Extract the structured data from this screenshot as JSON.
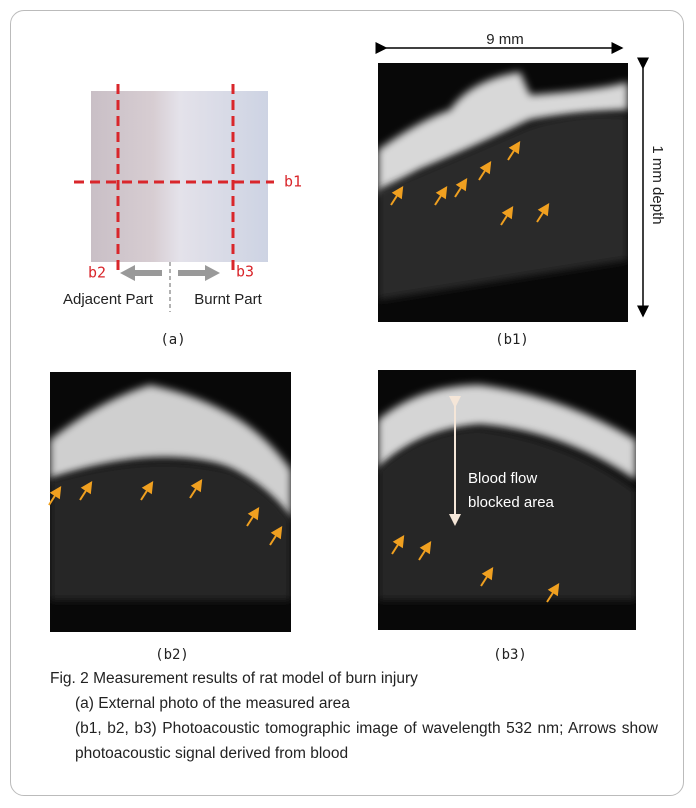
{
  "panel_a": {
    "b1_label": "b1",
    "b2_label": "b2",
    "b3_label": "b3",
    "adjacent": "Adjacent Part",
    "burnt": "Burnt Part",
    "label": "(a)"
  },
  "panel_b1": {
    "width_scale": "9 mm",
    "depth_scale": "1 mm depth",
    "label": "(b1)"
  },
  "panel_b2": {
    "label": "(b2)"
  },
  "panel_b3": {
    "annotation_line1": "Blood flow",
    "annotation_line2": "blocked area",
    "label": "(b3)"
  },
  "caption": {
    "title": "Fig. 2 Measurement results of rat model of burn injury",
    "item_a": "(a) External photo of the measured area",
    "item_b": "(b1, b2, b3) Photoacoustic tomographic image of wavelength 532 nm; Arrows show photoacoustic signal derived from blood"
  }
}
